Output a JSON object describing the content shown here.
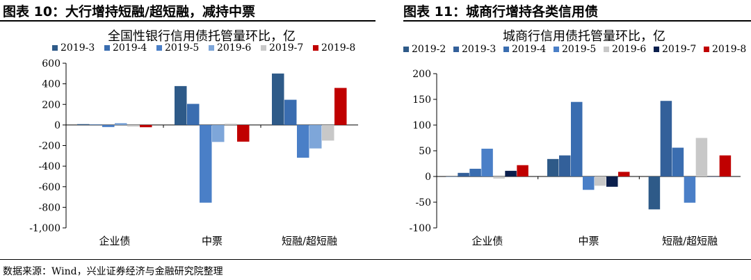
{
  "figures": [
    {
      "title": "图表 10：大行增持短融/超短融，减持中票"
    },
    {
      "title": "图表 11：城商行增持各类信用债"
    }
  ],
  "source_note": "数据来源：Wind，兴业证券经济与金融研究院整理",
  "chart_data": [
    {
      "type": "bar",
      "title": "全国性银行信用债托管量环比，亿",
      "categories": [
        "企业债",
        "中票",
        "短融/超短融"
      ],
      "ylim": [
        -1000,
        600
      ],
      "yticks": [
        -1000,
        -800,
        -600,
        -400,
        -200,
        0,
        200,
        400,
        600
      ],
      "ytick_labels": [
        "-1,000",
        "-800",
        "-600",
        "-400",
        "-200",
        "0",
        "200",
        "400",
        "600"
      ],
      "legend_position": "top",
      "grid": false,
      "series": [
        {
          "name": "2019-3",
          "color": "#2e5a88",
          "values": [
            8,
            378,
            500
          ]
        },
        {
          "name": "2019-4",
          "color": "#3a6db0",
          "values": [
            5,
            205,
            245
          ]
        },
        {
          "name": "2019-5",
          "color": "#4a7fc7",
          "values": [
            -20,
            -755,
            -318
          ]
        },
        {
          "name": "2019-6",
          "color": "#7ea6d9",
          "values": [
            18,
            -165,
            -228
          ]
        },
        {
          "name": "2019-7",
          "color": "#c8c8c8",
          "values": [
            -15,
            12,
            -152
          ]
        },
        {
          "name": "2019-8",
          "color": "#c00000",
          "values": [
            -22,
            -162,
            360
          ]
        }
      ]
    },
    {
      "type": "bar",
      "title": "城商行信用债托管量环比，亿",
      "categories": [
        "企业债",
        "中票",
        "短融/超短融"
      ],
      "ylim": [
        -100,
        200
      ],
      "yticks": [
        -100,
        -50,
        0,
        50,
        100,
        150,
        200
      ],
      "ytick_labels": [
        "-100",
        "-50",
        "0",
        "50",
        "100",
        "150",
        "200"
      ],
      "legend_position": "top",
      "grid": false,
      "series": [
        {
          "name": "2019-2",
          "color": "#2e5a88",
          "values": [
            0,
            34,
            -64
          ]
        },
        {
          "name": "2019-3",
          "color": "#33609a",
          "values": [
            7,
            41,
            147
          ]
        },
        {
          "name": "2019-4",
          "color": "#3a6db0",
          "values": [
            15,
            145,
            56
          ]
        },
        {
          "name": "2019-5",
          "color": "#4a7fc7",
          "values": [
            54,
            -26,
            -51
          ]
        },
        {
          "name": "2019-6",
          "color": "#c8c8c8",
          "values": [
            -4,
            -18,
            75
          ]
        },
        {
          "name": "2019-7",
          "color": "#0b1f4d",
          "values": [
            11,
            -20,
            0
          ]
        },
        {
          "name": "2019-8",
          "color": "#c00000",
          "values": [
            22,
            9,
            41
          ]
        }
      ]
    }
  ]
}
